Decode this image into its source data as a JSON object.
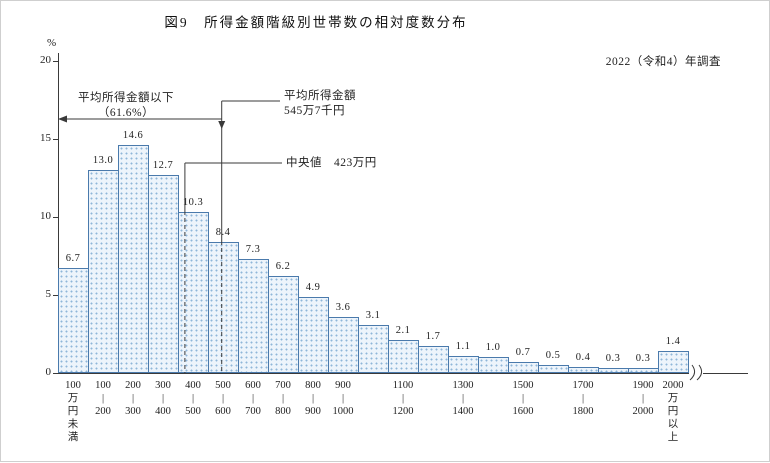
{
  "chart_data": {
    "type": "bar",
    "title": "図9　所得金額階級別世帯数の相対度数分布",
    "survey_note": "2022（令和4）年調査",
    "ylabel": "%",
    "ylim": [
      0,
      20
    ],
    "yticks": [
      0,
      5,
      10,
      15,
      20
    ],
    "grid": false,
    "categories": [
      "100万円未満",
      "100～200",
      "200～300",
      "300～400",
      "400～500",
      "500～600",
      "600～700",
      "700～800",
      "800～900",
      "900～1000",
      "1000～1100",
      "1100～1200",
      "1200～1300",
      "1300～1400",
      "1400～1500",
      "1500～1600",
      "1600～1700",
      "1700～1800",
      "1800～1900",
      "1900～2000",
      "2000万円以上"
    ],
    "values": [
      6.7,
      13.0,
      14.6,
      12.7,
      10.3,
      8.4,
      7.3,
      6.2,
      4.9,
      3.6,
      3.1,
      2.1,
      1.7,
      1.1,
      1.0,
      0.7,
      0.5,
      0.4,
      0.3,
      0.3,
      1.4
    ],
    "xticks": [
      {
        "bar": 0,
        "lines": [
          "100",
          "万",
          "円",
          "未",
          "満"
        ]
      },
      {
        "bar": 1,
        "lines": [
          "100",
          "|",
          "200"
        ]
      },
      {
        "bar": 2,
        "lines": [
          "200",
          "|",
          "300"
        ]
      },
      {
        "bar": 3,
        "lines": [
          "300",
          "|",
          "400"
        ]
      },
      {
        "bar": 4,
        "lines": [
          "400",
          "|",
          "500"
        ]
      },
      {
        "bar": 5,
        "lines": [
          "500",
          "|",
          "600"
        ]
      },
      {
        "bar": 6,
        "lines": [
          "600",
          "|",
          "700"
        ]
      },
      {
        "bar": 7,
        "lines": [
          "700",
          "|",
          "800"
        ]
      },
      {
        "bar": 8,
        "lines": [
          "800",
          "|",
          "900"
        ]
      },
      {
        "bar": 9,
        "lines": [
          "900",
          "|",
          "1000"
        ]
      },
      {
        "bar": 11,
        "lines": [
          "1100",
          "|",
          "1200"
        ]
      },
      {
        "bar": 13,
        "lines": [
          "1300",
          "|",
          "1400"
        ]
      },
      {
        "bar": 15,
        "lines": [
          "1500",
          "|",
          "1600"
        ]
      },
      {
        "bar": 17,
        "lines": [
          "1700",
          "|",
          "1800"
        ]
      },
      {
        "bar": 19,
        "lines": [
          "1900",
          "|",
          "2000"
        ]
      },
      {
        "bar": 20,
        "lines": [
          "2000",
          "万",
          "円",
          "以",
          "上"
        ]
      }
    ],
    "annotations": {
      "below_mean_label": "平均所得金額以下",
      "below_mean_percent": "（61.6%）",
      "mean_label": "平均所得金額",
      "mean_value_label": "545万7千円",
      "mean_value": 545.7,
      "median_label": "中央値　423万円",
      "median_value": 423
    },
    "colors": {
      "bar_fill": "#edf4fb",
      "bar_dot": "#8fb6d8",
      "bar_border": "#4a7aac",
      "line": "#3a3a3a",
      "text": "#222222"
    }
  }
}
